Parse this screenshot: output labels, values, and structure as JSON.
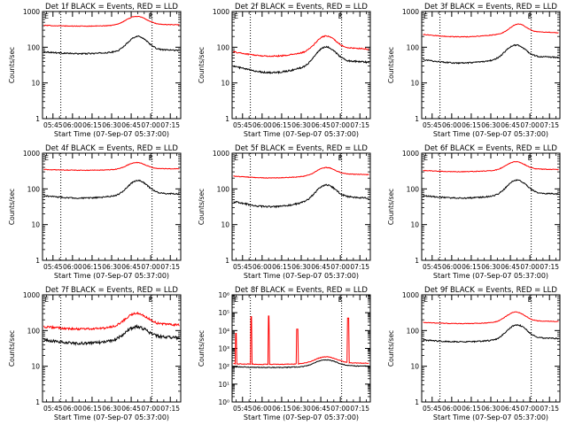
{
  "colors": {
    "events": "#000000",
    "lld": "#ff0000",
    "axis": "#000000",
    "background": "#ffffff"
  },
  "chart_data": [
    {
      "type": "line",
      "scale": "log",
      "detector": "1f",
      "title": "Det 1f BLACK = Events, RED = LLD",
      "xlabel": "Start Time (07-Sep-07 05:37:00)",
      "ylabel": "Counts/sec",
      "x_tick_labels": [
        "05:45",
        "06:00",
        "06:15",
        "06:30",
        "06:45",
        "07:00",
        "07:15"
      ],
      "x_tick_minutes": [
        0,
        15,
        30,
        45,
        60,
        75,
        90
      ],
      "xlim_minutes": [
        -8,
        98
      ],
      "dotted_lines_minutes": [
        6,
        76
      ],
      "y_tick_labels": [
        "1",
        "10",
        "100",
        "1000"
      ],
      "ylim": [
        1,
        1000
      ],
      "markers": [
        "E",
        "E"
      ],
      "series": [
        {
          "name": "Events",
          "color": "#000000",
          "base": 75,
          "peak": 195,
          "peak_minute": 65,
          "width_minutes": 9,
          "dip": 0.12,
          "noise": 0.04
        },
        {
          "name": "LLD",
          "color": "#ff0000",
          "base": 410,
          "peak": 720,
          "peak_minute": 64,
          "width_minutes": 10,
          "dip": 0.05,
          "noise": 0.02
        }
      ]
    },
    {
      "type": "line",
      "scale": "log",
      "detector": "2f",
      "title": "Det 2f BLACK = Events, RED = LLD",
      "xlabel": "Start Time (07-Sep-07 05:37:00)",
      "ylabel": "Counts/sec",
      "x_tick_labels": [
        "05:45",
        "06:00",
        "06:15",
        "06:30",
        "06:45",
        "07:00",
        "07:15"
      ],
      "x_tick_minutes": [
        0,
        15,
        30,
        45,
        60,
        75,
        90
      ],
      "xlim_minutes": [
        -8,
        98
      ],
      "dotted_lines_minutes": [
        6,
        76
      ],
      "y_tick_labels": [
        "1",
        "10",
        "100",
        "1000"
      ],
      "ylim": [
        1,
        1000
      ],
      "markers": [
        "E",
        "E"
      ],
      "series": [
        {
          "name": "Events",
          "color": "#000000",
          "base": 30,
          "peak": 95,
          "peak_minute": 64,
          "width_minutes": 9,
          "dip": 0.35,
          "noise": 0.05
        },
        {
          "name": "LLD",
          "color": "#ff0000",
          "base": 75,
          "peak": 195,
          "peak_minute": 64,
          "width_minutes": 9,
          "dip": 0.25,
          "noise": 0.04
        }
      ]
    },
    {
      "type": "line",
      "scale": "log",
      "detector": "3f",
      "title": "Det 3f BLACK = Events, RED = LLD",
      "xlabel": "Start Time (07-Sep-07 05:37:00)",
      "ylabel": "Counts/sec",
      "x_tick_labels": [
        "05:45",
        "06:00",
        "06:15",
        "06:30",
        "06:45",
        "07:00",
        "07:15"
      ],
      "x_tick_minutes": [
        0,
        15,
        30,
        45,
        60,
        75,
        90
      ],
      "xlim_minutes": [
        -8,
        98
      ],
      "dotted_lines_minutes": [
        6,
        76
      ],
      "y_tick_labels": [
        "1",
        "10",
        "100",
        "1000"
      ],
      "ylim": [
        1,
        1000
      ],
      "markers": [
        "E",
        "E"
      ],
      "series": [
        {
          "name": "Events",
          "color": "#000000",
          "base": 45,
          "peak": 110,
          "peak_minute": 64,
          "width_minutes": 9,
          "dip": 0.2,
          "noise": 0.04
        },
        {
          "name": "LLD",
          "color": "#ff0000",
          "base": 230,
          "peak": 420,
          "peak_minute": 66,
          "width_minutes": 8,
          "dip": 0.15,
          "noise": 0.02
        }
      ]
    },
    {
      "type": "line",
      "scale": "log",
      "detector": "4f",
      "title": "Det 4f BLACK = Events, RED = LLD",
      "xlabel": "Start Time (07-Sep-07 05:37:00)",
      "ylabel": "Counts/sec",
      "x_tick_labels": [
        "05:45",
        "06:00",
        "06:15",
        "06:30",
        "06:45",
        "07:00",
        "07:15"
      ],
      "x_tick_minutes": [
        0,
        15,
        30,
        45,
        60,
        75,
        90
      ],
      "xlim_minutes": [
        -8,
        98
      ],
      "dotted_lines_minutes": [
        6,
        76
      ],
      "y_tick_labels": [
        "1",
        "10",
        "100",
        "1000"
      ],
      "ylim": [
        1,
        1000
      ],
      "markers": [
        "E",
        "E"
      ],
      "series": [
        {
          "name": "Events",
          "color": "#000000",
          "base": 65,
          "peak": 165,
          "peak_minute": 65,
          "width_minutes": 9,
          "dip": 0.15,
          "noise": 0.04
        },
        {
          "name": "LLD",
          "color": "#ff0000",
          "base": 350,
          "peak": 540,
          "peak_minute": 64,
          "width_minutes": 9,
          "dip": 0.05,
          "noise": 0.02
        }
      ]
    },
    {
      "type": "line",
      "scale": "log",
      "detector": "5f",
      "title": "Det 5f BLACK = Events, RED = LLD",
      "xlabel": "Start Time (07-Sep-07 05:37:00)",
      "ylabel": "Counts/sec",
      "x_tick_labels": [
        "05:45",
        "06:00",
        "06:15",
        "06:30",
        "06:45",
        "07:00",
        "07:15"
      ],
      "x_tick_minutes": [
        0,
        15,
        30,
        45,
        60,
        75,
        90
      ],
      "xlim_minutes": [
        -8,
        98
      ],
      "dotted_lines_minutes": [
        6,
        76
      ],
      "y_tick_labels": [
        "1",
        "10",
        "100",
        "1000"
      ],
      "ylim": [
        1,
        1000
      ],
      "markers": [
        "E",
        "E"
      ],
      "series": [
        {
          "name": "Events",
          "color": "#000000",
          "base": 45,
          "peak": 120,
          "peak_minute": 64,
          "width_minutes": 9,
          "dip": 0.3,
          "noise": 0.05
        },
        {
          "name": "LLD",
          "color": "#ff0000",
          "base": 230,
          "peak": 380,
          "peak_minute": 64,
          "width_minutes": 9,
          "dip": 0.12,
          "noise": 0.02
        }
      ]
    },
    {
      "type": "line",
      "scale": "log",
      "detector": "6f",
      "title": "Det 6f BLACK = Events, RED = LLD",
      "xlabel": "Start Time (07-Sep-07 05:37:00)",
      "ylabel": "Counts/sec",
      "x_tick_labels": [
        "05:45",
        "06:00",
        "06:15",
        "06:30",
        "06:45",
        "07:00",
        "07:15"
      ],
      "x_tick_minutes": [
        0,
        15,
        30,
        45,
        60,
        75,
        90
      ],
      "xlim_minutes": [
        -8,
        98
      ],
      "dotted_lines_minutes": [
        6,
        76
      ],
      "y_tick_labels": [
        "1",
        "10",
        "100",
        "1000"
      ],
      "ylim": [
        1,
        1000
      ],
      "markers": [
        "E",
        "E"
      ],
      "series": [
        {
          "name": "Events",
          "color": "#000000",
          "base": 65,
          "peak": 170,
          "peak_minute": 65,
          "width_minutes": 9,
          "dip": 0.15,
          "noise": 0.04
        },
        {
          "name": "LLD",
          "color": "#ff0000",
          "base": 330,
          "peak": 560,
          "peak_minute": 64,
          "width_minutes": 9,
          "dip": 0.08,
          "noise": 0.02
        }
      ]
    },
    {
      "type": "line",
      "scale": "log",
      "detector": "7f",
      "title": "Det 7f BLACK = Events, RED = LLD",
      "xlabel": "Start Time (07-Sep-07 05:37:00)",
      "ylabel": "Counts/sec",
      "x_tick_labels": [
        "05:45",
        "06:00",
        "06:15",
        "06:30",
        "06:45",
        "07:00",
        "07:15"
      ],
      "x_tick_minutes": [
        0,
        15,
        30,
        45,
        60,
        75,
        90
      ],
      "xlim_minutes": [
        -8,
        98
      ],
      "dotted_lines_minutes": [
        6,
        76
      ],
      "y_tick_labels": [
        "1",
        "10",
        "100",
        "1000"
      ],
      "ylim": [
        1,
        1000
      ],
      "markers": [
        "E",
        "E"
      ],
      "series": [
        {
          "name": "Events",
          "color": "#000000",
          "base": 55,
          "peak": 120,
          "peak_minute": 64,
          "width_minutes": 10,
          "dip": 0.2,
          "noise": 0.09
        },
        {
          "name": "LLD",
          "color": "#ff0000",
          "base": 130,
          "peak": 290,
          "peak_minute": 64,
          "width_minutes": 10,
          "dip": 0.15,
          "noise": 0.07
        }
      ]
    },
    {
      "type": "line",
      "scale": "log",
      "detector": "8f",
      "title": "Det 8f BLACK = Events, RED = LLD",
      "xlabel": "Start Time (07-Sep-07 05:37:00)",
      "ylabel": "Counts/sec",
      "x_tick_labels": [
        "05:45",
        "06:00",
        "06:15",
        "06:30",
        "06:45",
        "07:00",
        "07:15"
      ],
      "x_tick_minutes": [
        0,
        15,
        30,
        45,
        60,
        75,
        90
      ],
      "xlim_minutes": [
        -8,
        98
      ],
      "dotted_lines_minutes": [
        6,
        76
      ],
      "y_tick_labels": [
        "10⁰",
        "10¹",
        "10²",
        "10³",
        "10⁴",
        "10⁵",
        "10⁶"
      ],
      "ylim": [
        1,
        1000000
      ],
      "markers": [
        "E",
        "E"
      ],
      "spikes_minutes": [
        -5,
        6.5,
        20,
        42,
        81
      ],
      "spike_values": [
        7000,
        60000,
        65000,
        12000,
        50000
      ],
      "series": [
        {
          "name": "Events",
          "color": "#000000",
          "base": 95,
          "peak": 220,
          "peak_minute": 64,
          "width_minutes": 10,
          "dip": 0.1,
          "noise": 0.05
        },
        {
          "name": "LLD",
          "color": "#ff0000",
          "base": 140,
          "peak": 330,
          "peak_minute": 64,
          "width_minutes": 10,
          "dip": 0.08,
          "noise": 0.04
        }
      ]
    },
    {
      "type": "line",
      "scale": "log",
      "detector": "9f",
      "title": "Det 9f BLACK = Events, RED = LLD",
      "xlabel": "Start Time (07-Sep-07 05:37:00)",
      "ylabel": "Counts/sec",
      "x_tick_labels": [
        "05:45",
        "06:00",
        "06:15",
        "06:30",
        "06:45",
        "07:00",
        "07:15"
      ],
      "x_tick_minutes": [
        0,
        15,
        30,
        45,
        60,
        75,
        90
      ],
      "xlim_minutes": [
        -8,
        98
      ],
      "dotted_lines_minutes": [
        6,
        76
      ],
      "y_tick_labels": [
        "1",
        "10",
        "100",
        "1000"
      ],
      "ylim": [
        1,
        1000
      ],
      "markers": [
        "E",
        "E"
      ],
      "series": [
        {
          "name": "Events",
          "color": "#000000",
          "base": 55,
          "peak": 140,
          "peak_minute": 65,
          "width_minutes": 9,
          "dip": 0.12,
          "noise": 0.04
        },
        {
          "name": "LLD",
          "color": "#ff0000",
          "base": 170,
          "peak": 320,
          "peak_minute": 64,
          "width_minutes": 9,
          "dip": 0.08,
          "noise": 0.02
        }
      ]
    }
  ]
}
